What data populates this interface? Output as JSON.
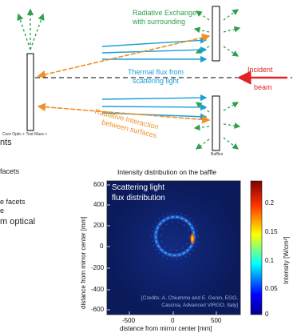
{
  "diagram": {
    "radiative_exchange": [
      "Radiative Exchange",
      "with surrounding"
    ],
    "thermal_flux": [
      "Thermal flux from",
      "scattering light"
    ],
    "incident_beam": [
      "Incident",
      "beam"
    ],
    "radiative_interaction": [
      "Radiative Interaction",
      "between surfaces"
    ],
    "core_optic_label": "Core Optic + Test Mass +",
    "baffles_label": "Baffles"
  },
  "left_text": {
    "line1": "nts",
    "line2": "facets",
    "line3": "e facets",
    "line4": "e",
    "line5": "m optical"
  },
  "heatmap": {
    "title": "Intensity distribution on the baffle",
    "overlay": [
      "Scattering light",
      "flux distribution"
    ],
    "credits": [
      "[Credits: A. Chiummo and E. Genin, EGO,",
      "Cascina, Advanced VIRGO, Italy]"
    ],
    "ylabel": "distance from mirror center [mm]",
    "xlabel": "distance from mirror center [mm]",
    "yticks": [
      "600",
      "400",
      "200",
      "0",
      "-200",
      "-400",
      "-600"
    ],
    "xticks": [
      "-500",
      "0",
      "500"
    ],
    "colorbar_ticks": [
      "0.2",
      "0.15",
      "0.1",
      "0.05",
      "0"
    ],
    "colorbar_label": "Intensity [W/cm²]",
    "colors": {
      "background": "#0d1f63",
      "ring": "#4fa3f0",
      "hotspot": "#ff6a00"
    }
  }
}
